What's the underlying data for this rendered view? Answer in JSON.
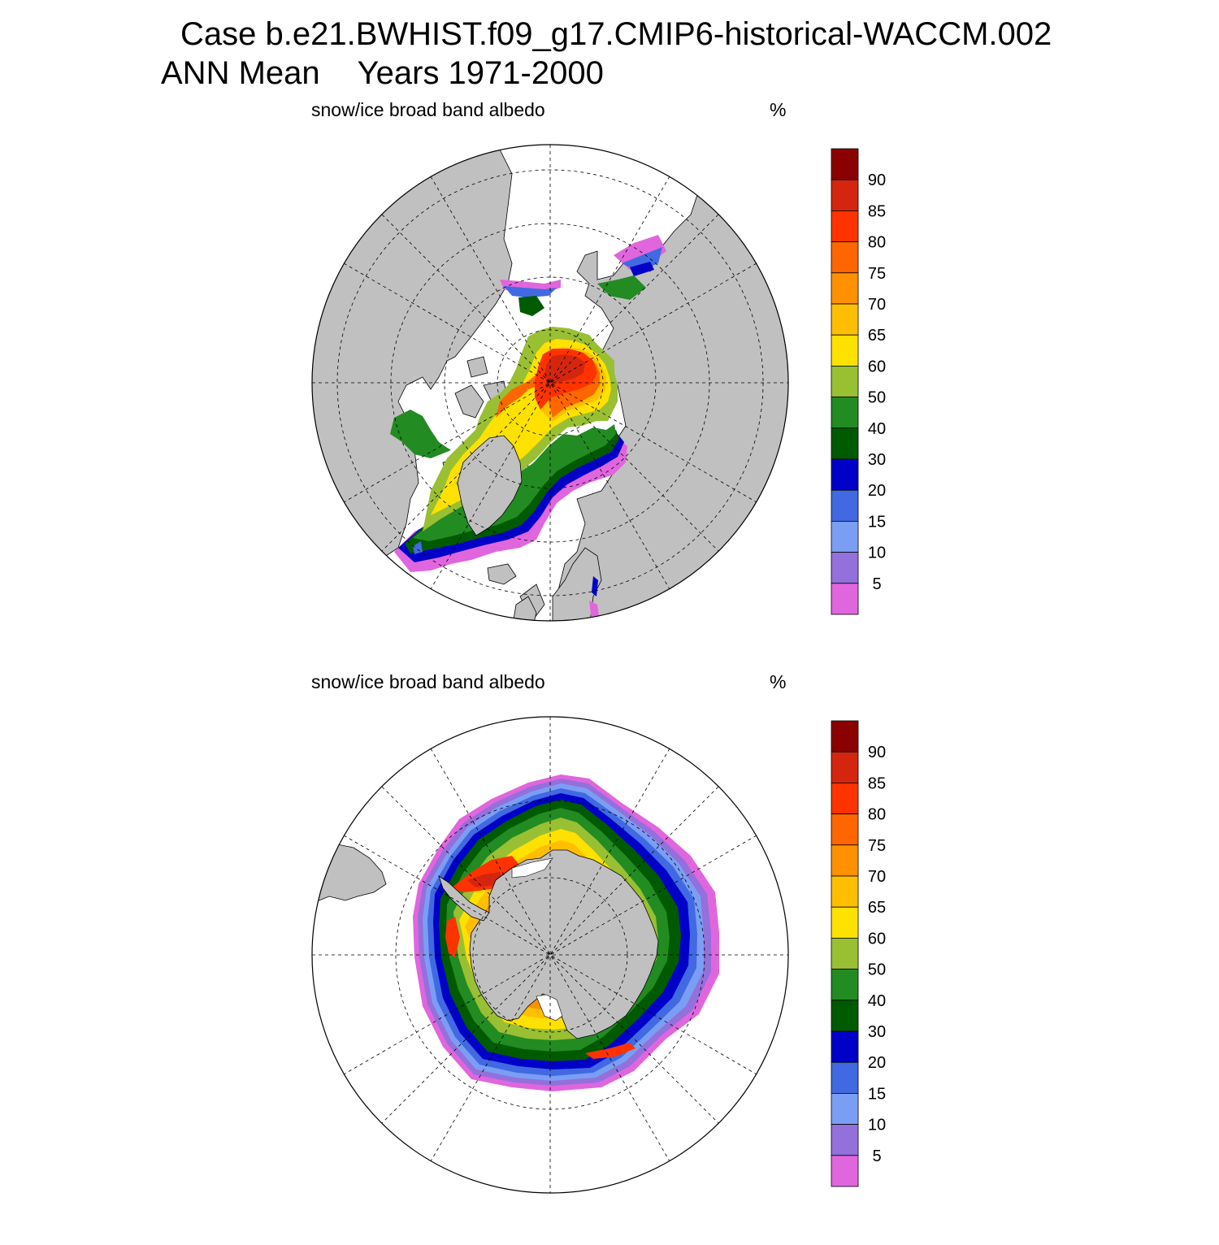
{
  "title": {
    "case": "Case b.e21.BWHIST.f09_g17.CMIP6-historical-WACCM.002",
    "season": "ANN Mean",
    "years": "Years 1971-2000"
  },
  "panels": [
    {
      "id": "north",
      "variable": "snow/ice broad band albedo",
      "units": "%",
      "hemisphere": "Northern Hemisphere polar stereographic"
    },
    {
      "id": "south",
      "variable": "snow/ice broad band albedo",
      "units": "%",
      "hemisphere": "Southern Hemisphere polar stereographic"
    }
  ],
  "colorbar": {
    "levels": [
      "90",
      "85",
      "80",
      "75",
      "70",
      "65",
      "60",
      "50",
      "40",
      "30",
      "20",
      "15",
      "10",
      "5"
    ],
    "colors": [
      "#8b0000",
      "#d4260f",
      "#ff3300",
      "#ff6600",
      "#ff9100",
      "#ffbf00",
      "#ffe100",
      "#99bf33",
      "#228b22",
      "#005a00",
      "#0000c8",
      "#4169e1",
      "#7b9ef5",
      "#9370db",
      "#e066dd"
    ]
  },
  "colors": {
    "land": "#c0c0c0",
    "ocean": "#ffffff",
    "missing_ice": "#ffffff"
  }
}
